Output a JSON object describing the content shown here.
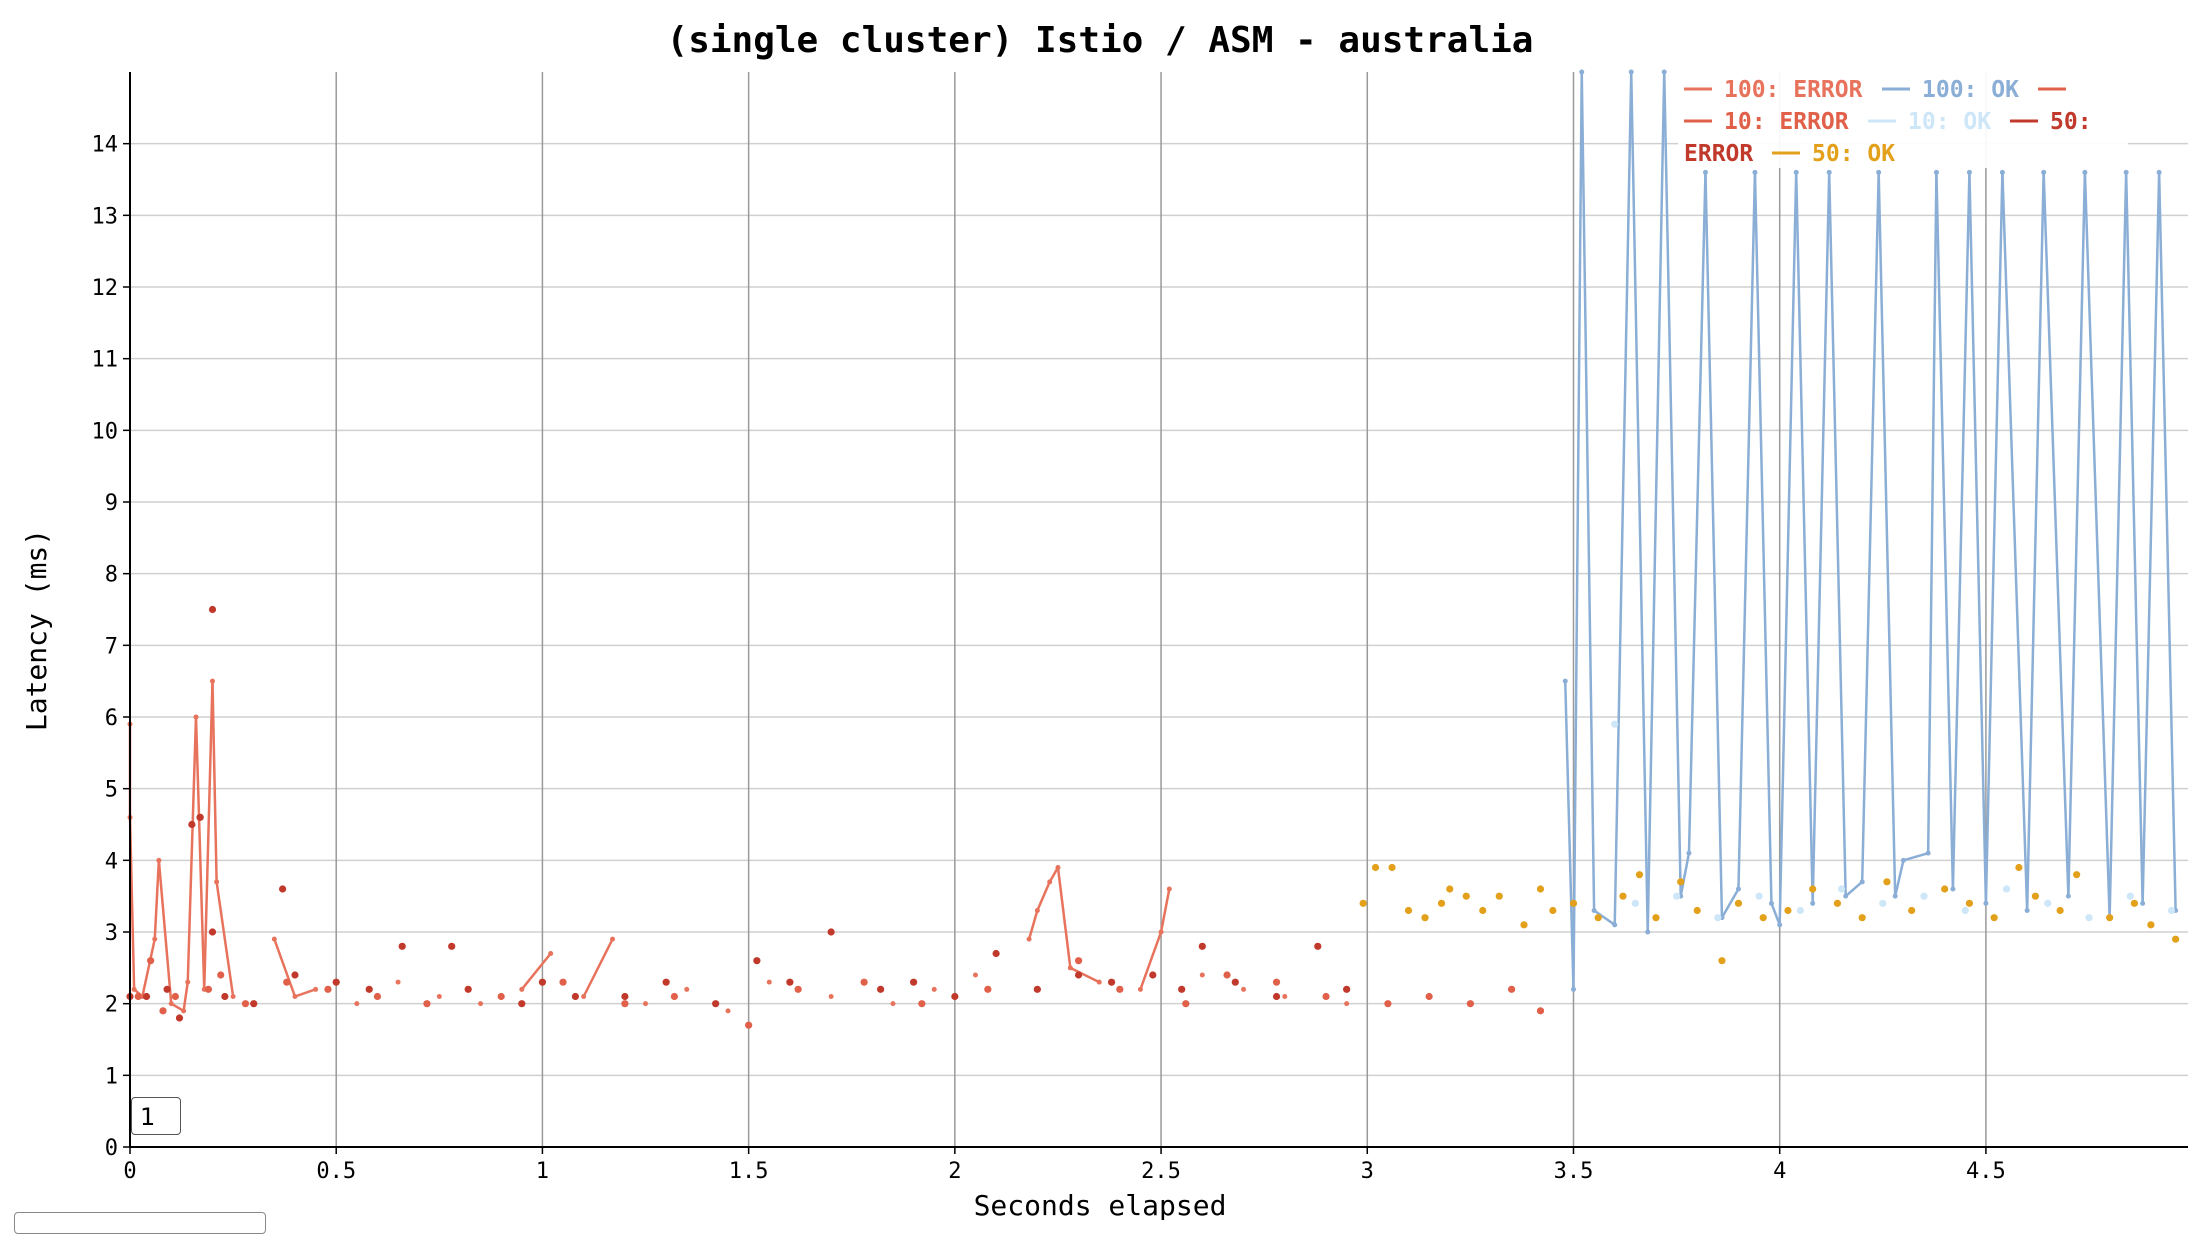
{
  "chart_data": {
    "type": "scatter",
    "title": "(single cluster) Istio / ASM - australia",
    "xlabel": "Seconds elapsed",
    "ylabel": "Latency (ms)",
    "xlim": [
      0,
      4.99
    ],
    "ylim": [
      0,
      15
    ],
    "xticks": [
      0,
      0.5,
      1,
      1.5,
      2,
      2.5,
      3,
      3.5,
      4,
      4.5
    ],
    "yticks": [
      0,
      1,
      2,
      3,
      4,
      5,
      6,
      7,
      8,
      9,
      10,
      11,
      12,
      13,
      14
    ],
    "xtick_labels": [
      "0",
      "0.5",
      "1",
      "1.5",
      "2",
      "2.5",
      "3",
      "3.5",
      "4",
      "4.5"
    ],
    "ytick_labels": [
      "0",
      "1",
      "2",
      "3",
      "4",
      "5",
      "6",
      "7",
      "8",
      "9",
      "10",
      "11",
      "12",
      "13",
      "14"
    ],
    "grid": true,
    "legend_position": "top-right",
    "legend_lines": [
      [
        {
          "series": 0,
          "text": "100: ERROR"
        },
        {
          "series": 1,
          "text": "100: OK"
        },
        {
          "series": 2,
          "text": ""
        }
      ],
      [
        {
          "series": 2,
          "text": "10: ERROR"
        },
        {
          "series": 3,
          "text": "10: OK"
        },
        {
          "series": 4,
          "text": "50:"
        }
      ],
      [
        {
          "series": 4,
          "text": "ERROR"
        },
        {
          "series": 5,
          "text": "50: OK"
        }
      ]
    ],
    "series": [
      {
        "name": "100: ERROR",
        "color": "#e8735c",
        "points": [
          [
            0.0,
            5.9
          ],
          [
            0.0,
            4.6
          ],
          [
            0.01,
            2.2
          ],
          [
            0.03,
            2.1
          ],
          [
            0.06,
            2.9
          ],
          [
            0.07,
            4.0
          ],
          [
            0.1,
            2.0
          ],
          [
            0.13,
            1.9
          ],
          [
            0.14,
            2.3
          ],
          [
            0.16,
            6.0
          ],
          [
            0.18,
            2.2
          ],
          [
            0.2,
            6.5
          ],
          [
            0.21,
            3.7
          ],
          [
            0.25,
            2.1
          ],
          [
            0.35,
            2.9
          ],
          [
            0.4,
            2.1
          ],
          [
            0.45,
            2.2
          ],
          [
            0.55,
            2.0
          ],
          [
            0.65,
            2.3
          ],
          [
            0.75,
            2.1
          ],
          [
            0.85,
            2.0
          ],
          [
            0.95,
            2.2
          ],
          [
            1.02,
            2.7
          ],
          [
            1.1,
            2.1
          ],
          [
            1.17,
            2.9
          ],
          [
            1.25,
            2.0
          ],
          [
            1.35,
            2.2
          ],
          [
            1.45,
            1.9
          ],
          [
            1.55,
            2.3
          ],
          [
            1.7,
            2.1
          ],
          [
            1.85,
            2.0
          ],
          [
            1.95,
            2.2
          ],
          [
            2.05,
            2.4
          ],
          [
            2.18,
            2.9
          ],
          [
            2.2,
            3.3
          ],
          [
            2.23,
            3.7
          ],
          [
            2.25,
            3.9
          ],
          [
            2.28,
            2.5
          ],
          [
            2.35,
            2.3
          ],
          [
            2.45,
            2.2
          ],
          [
            2.5,
            3.0
          ],
          [
            2.52,
            3.6
          ],
          [
            2.6,
            2.4
          ],
          [
            2.7,
            2.2
          ],
          [
            2.8,
            2.1
          ],
          [
            2.95,
            2.0
          ]
        ]
      },
      {
        "name": "100: OK",
        "color": "#8aaed6",
        "points": [
          [
            3.48,
            6.5
          ],
          [
            3.5,
            2.2
          ],
          [
            3.52,
            15.0
          ],
          [
            3.55,
            3.3
          ],
          [
            3.6,
            3.1
          ],
          [
            3.64,
            15.0
          ],
          [
            3.68,
            3.0
          ],
          [
            3.72,
            15.0
          ],
          [
            3.76,
            3.5
          ],
          [
            3.78,
            4.1
          ],
          [
            3.82,
            13.6
          ],
          [
            3.86,
            3.2
          ],
          [
            3.9,
            3.6
          ],
          [
            3.94,
            13.6
          ],
          [
            3.98,
            3.4
          ],
          [
            4.0,
            3.1
          ],
          [
            4.04,
            13.6
          ],
          [
            4.08,
            3.4
          ],
          [
            4.12,
            13.6
          ],
          [
            4.16,
            3.5
          ],
          [
            4.2,
            3.7
          ],
          [
            4.24,
            13.6
          ],
          [
            4.28,
            3.5
          ],
          [
            4.3,
            4.0
          ],
          [
            4.36,
            4.1
          ],
          [
            4.38,
            13.6
          ],
          [
            4.42,
            3.6
          ],
          [
            4.46,
            13.6
          ],
          [
            4.5,
            3.4
          ],
          [
            4.54,
            13.6
          ],
          [
            4.6,
            3.3
          ],
          [
            4.64,
            13.6
          ],
          [
            4.7,
            3.5
          ],
          [
            4.74,
            13.6
          ],
          [
            4.8,
            3.2
          ],
          [
            4.84,
            13.6
          ],
          [
            4.88,
            3.4
          ],
          [
            4.92,
            13.6
          ],
          [
            4.96,
            3.3
          ]
        ]
      },
      {
        "name": "10: ERROR",
        "color": "#e0604a",
        "points": [
          [
            0.02,
            2.1
          ],
          [
            0.05,
            2.6
          ],
          [
            0.08,
            1.9
          ],
          [
            0.11,
            2.1
          ],
          [
            0.17,
            4.6
          ],
          [
            0.19,
            2.2
          ],
          [
            0.22,
            2.4
          ],
          [
            0.28,
            2.0
          ],
          [
            0.38,
            2.3
          ],
          [
            0.48,
            2.2
          ],
          [
            0.6,
            2.1
          ],
          [
            0.72,
            2.0
          ],
          [
            0.9,
            2.1
          ],
          [
            1.05,
            2.3
          ],
          [
            1.2,
            2.0
          ],
          [
            1.32,
            2.1
          ],
          [
            1.5,
            1.7
          ],
          [
            1.62,
            2.2
          ],
          [
            1.78,
            2.3
          ],
          [
            1.92,
            2.0
          ],
          [
            2.08,
            2.2
          ],
          [
            2.3,
            2.6
          ],
          [
            2.4,
            2.2
          ],
          [
            2.56,
            2.0
          ],
          [
            2.66,
            2.4
          ],
          [
            2.78,
            2.3
          ],
          [
            2.9,
            2.1
          ],
          [
            3.05,
            2.0
          ],
          [
            3.15,
            2.1
          ],
          [
            3.25,
            2.0
          ],
          [
            3.35,
            2.2
          ],
          [
            3.42,
            1.9
          ]
        ]
      },
      {
        "name": "10: OK",
        "color": "#cde6f8",
        "points": [
          [
            3.6,
            5.9
          ],
          [
            3.65,
            3.4
          ],
          [
            3.75,
            3.5
          ],
          [
            3.85,
            3.2
          ],
          [
            3.95,
            3.5
          ],
          [
            4.05,
            3.3
          ],
          [
            4.15,
            3.6
          ],
          [
            4.25,
            3.4
          ],
          [
            4.35,
            3.5
          ],
          [
            4.45,
            3.3
          ],
          [
            4.55,
            3.6
          ],
          [
            4.65,
            3.4
          ],
          [
            4.75,
            3.2
          ],
          [
            4.85,
            3.5
          ],
          [
            4.95,
            3.3
          ]
        ]
      },
      {
        "name": "50: ERROR",
        "color": "#c0392b",
        "points": [
          [
            0.0,
            2.1
          ],
          [
            0.04,
            2.1
          ],
          [
            0.09,
            2.2
          ],
          [
            0.12,
            1.8
          ],
          [
            0.15,
            4.5
          ],
          [
            0.17,
            4.6
          ],
          [
            0.2,
            7.5
          ],
          [
            0.2,
            3.0
          ],
          [
            0.23,
            2.1
          ],
          [
            0.3,
            2.0
          ],
          [
            0.37,
            3.6
          ],
          [
            0.4,
            2.4
          ],
          [
            0.5,
            2.3
          ],
          [
            0.58,
            2.2
          ],
          [
            0.66,
            2.8
          ],
          [
            0.78,
            2.8
          ],
          [
            0.82,
            2.2
          ],
          [
            0.95,
            2.0
          ],
          [
            1.0,
            2.3
          ],
          [
            1.08,
            2.1
          ],
          [
            1.2,
            2.1
          ],
          [
            1.3,
            2.3
          ],
          [
            1.42,
            2.0
          ],
          [
            1.52,
            2.6
          ],
          [
            1.6,
            2.3
          ],
          [
            1.7,
            3.0
          ],
          [
            1.82,
            2.2
          ],
          [
            1.9,
            2.3
          ],
          [
            2.0,
            2.1
          ],
          [
            2.1,
            2.7
          ],
          [
            2.2,
            2.2
          ],
          [
            2.3,
            2.4
          ],
          [
            2.38,
            2.3
          ],
          [
            2.48,
            2.4
          ],
          [
            2.55,
            2.2
          ],
          [
            2.6,
            2.8
          ],
          [
            2.68,
            2.3
          ],
          [
            2.78,
            2.1
          ],
          [
            2.88,
            2.8
          ],
          [
            2.95,
            2.2
          ]
        ]
      },
      {
        "name": "50: OK",
        "color": "#e3a01b",
        "points": [
          [
            2.99,
            3.4
          ],
          [
            3.02,
            3.9
          ],
          [
            3.06,
            3.9
          ],
          [
            3.1,
            3.3
          ],
          [
            3.14,
            3.2
          ],
          [
            3.18,
            3.4
          ],
          [
            3.2,
            3.6
          ],
          [
            3.24,
            3.5
          ],
          [
            3.28,
            3.3
          ],
          [
            3.32,
            3.5
          ],
          [
            3.38,
            3.1
          ],
          [
            3.42,
            3.6
          ],
          [
            3.45,
            3.3
          ],
          [
            3.5,
            3.4
          ],
          [
            3.56,
            3.2
          ],
          [
            3.62,
            3.5
          ],
          [
            3.66,
            3.8
          ],
          [
            3.7,
            3.2
          ],
          [
            3.76,
            3.7
          ],
          [
            3.8,
            3.3
          ],
          [
            3.86,
            2.6
          ],
          [
            3.9,
            3.4
          ],
          [
            3.96,
            3.2
          ],
          [
            4.02,
            3.3
          ],
          [
            4.08,
            3.6
          ],
          [
            4.14,
            3.4
          ],
          [
            4.2,
            3.2
          ],
          [
            4.26,
            3.7
          ],
          [
            4.32,
            3.3
          ],
          [
            4.4,
            3.6
          ],
          [
            4.46,
            3.4
          ],
          [
            4.52,
            3.2
          ],
          [
            4.58,
            3.9
          ],
          [
            4.62,
            3.5
          ],
          [
            4.68,
            3.3
          ],
          [
            4.72,
            3.8
          ],
          [
            4.8,
            3.2
          ],
          [
            4.86,
            3.4
          ],
          [
            4.9,
            3.1
          ],
          [
            4.96,
            2.9
          ]
        ]
      }
    ]
  },
  "pager": {
    "value": "1"
  }
}
